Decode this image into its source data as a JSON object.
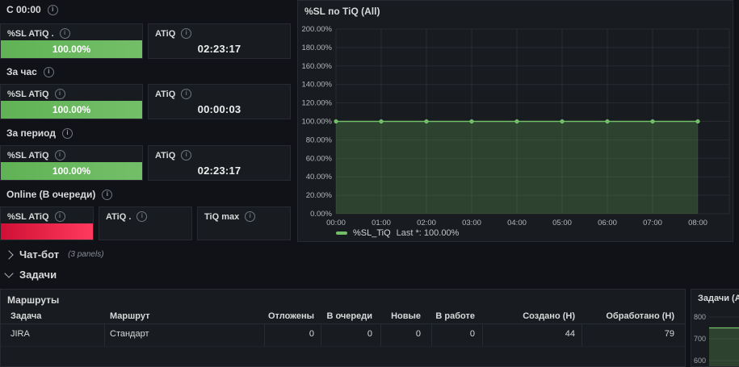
{
  "colors": {
    "page_bg": "#111217",
    "panel_bg": "#181b1f",
    "panel_border": "#272a30",
    "green": "#73bf69",
    "green_fill": "rgba(115,191,105,0.24)",
    "red_gradient_start": "#cf1034",
    "red_gradient_end": "#ff3a5f",
    "text_primary": "#d8d9da",
    "axis_text": "#b4b7bc",
    "grid": "rgba(204,212,220,0.09)"
  },
  "icons": {
    "info_glyph": "i"
  },
  "stats": {
    "sections": [
      {
        "header": "С 00:00",
        "panels": [
          {
            "title": "%SL ATiQ .",
            "value": "100.00%",
            "display": "bar-green"
          },
          {
            "title": "ATiQ",
            "value": "02:23:17",
            "display": "text"
          }
        ]
      },
      {
        "header": "За час",
        "panels": [
          {
            "title": "%SL ATiQ",
            "value": "100.00%",
            "display": "bar-green"
          },
          {
            "title": "ATiQ",
            "value": "00:00:03",
            "display": "text"
          }
        ]
      },
      {
        "header": "За период",
        "panels": [
          {
            "title": "%SL ATiQ",
            "value": "100.00%",
            "display": "bar-green"
          },
          {
            "title": "ATiQ",
            "value": "02:23:17",
            "display": "text"
          }
        ]
      },
      {
        "header": "Online (В очереди)",
        "panels": [
          {
            "title": "%SL ATiQ",
            "value": "",
            "display": "bar-red"
          },
          {
            "title": "ATiQ .",
            "value": "",
            "display": "empty"
          },
          {
            "title": "TiQ max",
            "value": "",
            "display": "empty"
          }
        ]
      }
    ]
  },
  "rows": [
    {
      "label": "Чат-бот",
      "meta": "(3 panels)",
      "state": "collapsed"
    },
    {
      "label": "Задачи",
      "meta": "",
      "state": "expanded"
    }
  ],
  "table": {
    "title": "Маршруты",
    "columns": [
      "Задача",
      "Маршрут",
      "Отложены",
      "В очереди",
      "Новые",
      "В работе",
      "Создано (Н)",
      "Обработано (Н)"
    ],
    "rows": [
      [
        "JIRA",
        "Стандарт",
        "0",
        "0",
        "0",
        "0",
        "44",
        "79"
      ]
    ]
  },
  "chart_data": [
    {
      "type": "line",
      "title": "%SL по TiQ (All)",
      "x": [
        "00:00",
        "01:00",
        "02:00",
        "03:00",
        "04:00",
        "05:00",
        "06:00",
        "07:00",
        "08:00"
      ],
      "series": [
        {
          "name": "%SL_TiQ",
          "values": [
            100,
            100,
            100,
            100,
            100,
            100,
            100,
            100,
            100
          ]
        }
      ],
      "ylim": [
        0,
        200
      ],
      "y_ticks": [
        "200.00%",
        "180.00%",
        "160.00%",
        "140.00%",
        "120.00%",
        "100.00%",
        "80.00%",
        "60.00%",
        "40.00%",
        "20.00%",
        "0.00%"
      ],
      "grid": true,
      "area_fill": true,
      "legend": {
        "position": "bottom",
        "label": "%SL_TiQ",
        "stat": "Last *: 100.00%"
      }
    },
    {
      "type": "area",
      "title": "Задачи (All)",
      "y_ticks": [
        "800",
        "700",
        "600"
      ],
      "ylim_visible": [
        600,
        800
      ],
      "series": [
        {
          "name": "Задачи",
          "values": [
            750,
            750
          ]
        }
      ],
      "grid": true,
      "clipped_right": true
    }
  ]
}
